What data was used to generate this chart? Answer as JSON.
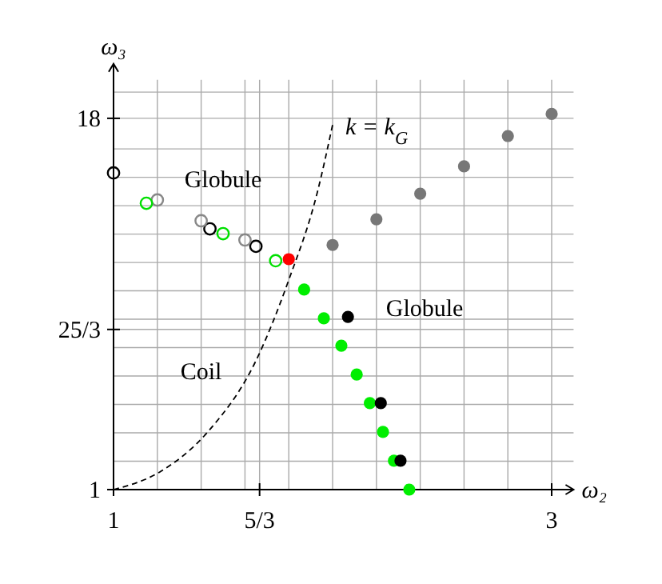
{
  "chart_data": {
    "type": "scatter",
    "xlabel": "ω₂",
    "ylabel": "ω₃",
    "xlim": [
      1,
      3.1
    ],
    "ylim": [
      1,
      20.5
    ],
    "xticks": [
      1,
      {
        "value": 1.2,
        "label": null
      },
      {
        "value": 1.4,
        "label": null
      },
      {
        "value": 1.6,
        "label": null
      },
      {
        "value": 1.6667,
        "label": "5/3"
      },
      {
        "value": 1.8,
        "label": null
      },
      {
        "value": 2,
        "label": null
      },
      {
        "value": 2.2,
        "label": null
      },
      {
        "value": 2.4,
        "label": null
      },
      {
        "value": 2.6,
        "label": null
      },
      {
        "value": 2.8,
        "label": null
      },
      3
    ],
    "yticks": [
      1,
      {
        "value": 2.3,
        "label": null
      },
      {
        "value": 3.6,
        "label": null
      },
      {
        "value": 4.9,
        "label": null
      },
      {
        "value": 6.2,
        "label": null
      },
      {
        "value": 7.5,
        "label": null
      },
      {
        "value": 8.3333,
        "label": "25/3"
      },
      {
        "value": 8.8,
        "label": null
      },
      {
        "value": 10.1,
        "label": null
      },
      {
        "value": 11.4,
        "label": null
      },
      {
        "value": 12.7,
        "label": null
      },
      {
        "value": 14,
        "label": null
      },
      {
        "value": 15.3,
        "label": null
      },
      {
        "value": 16.6,
        "label": null
      },
      18,
      {
        "value": 19.2,
        "label": null
      }
    ],
    "grid": true,
    "marker": "circle",
    "series": [
      {
        "color": "#000000",
        "x": [
          1,
          1.44,
          1.65
        ],
        "values": [
          15.5,
          12.94,
          12.14
        ]
      },
      {
        "color": "#888888",
        "x": [
          1.2,
          1.4,
          1.6
        ],
        "values": [
          14.26,
          13.31,
          12.43
        ]
      },
      {
        "color": "#00e000",
        "x": [
          1.15,
          1.5,
          1.74
        ],
        "values": [
          14.11,
          12.72,
          11.48
        ]
      },
      {
        "color": "#ff0000",
        "x": [
          1.8
        ],
        "values": [
          11.55
        ]
      },
      {
        "color": "#00ee00",
        "x": [
          1.87,
          1.96,
          2.04,
          2.11,
          2.17,
          2.23,
          2.28,
          2.35
        ],
        "values": [
          10.16,
          8.84,
          7.59,
          6.27,
          4.96,
          3.64,
          2.32,
          1.0
        ]
      },
      {
        "color": "#000000",
        "x": [
          2.07,
          2.22,
          2.31
        ],
        "values": [
          8.91,
          4.96,
          2.32
        ]
      },
      {
        "color": "#777777",
        "x": [
          2.0,
          2.2,
          2.4,
          2.6,
          2.8,
          3.0
        ],
        "values": [
          12.2,
          13.38,
          14.55,
          15.8,
          17.19,
          18.2
        ]
      },
      {
        "type": "line",
        "name": "k = k$_{G}$",
        "color": "#000000",
        "line_style": "dashed",
        "marker": "none",
        "x": [
          1,
          1.21,
          1.43,
          1.65,
          1.8,
          1.93,
          2.0
        ],
        "values": [
          1,
          1.8,
          3.64,
          6.9,
          10.6,
          14.6,
          17.7
        ]
      }
    ],
    "annotations": [
      "Globule",
      "Coil",
      "Globule"
    ]
  }
}
